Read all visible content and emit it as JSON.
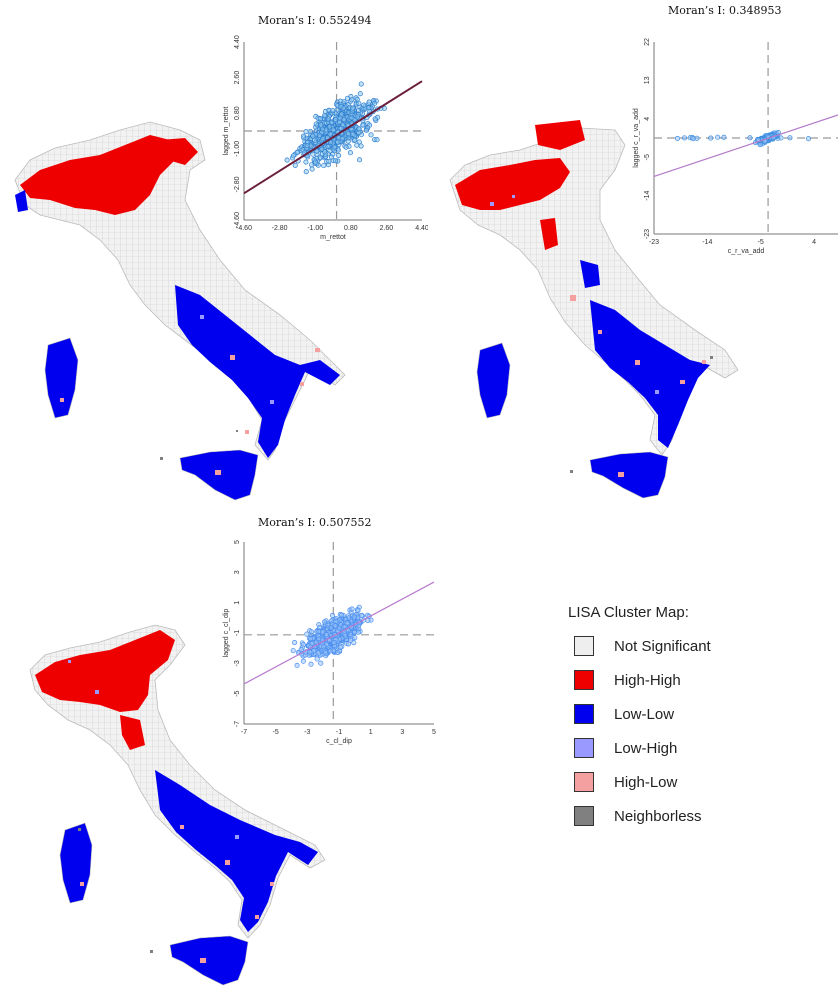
{
  "panels": [
    {
      "moran_label": "Moran’s I: 0.552494",
      "xlabel": "m_rettot",
      "ylabel": "lagged m_rettot",
      "xticks": [
        "-4.60",
        "-2.80",
        "-1.00",
        "0.80",
        "2.60",
        "4.40"
      ],
      "yticks": [
        "4.40",
        "2.60",
        "0.80",
        "-1.00",
        "-2.80",
        "-4.60"
      ],
      "point_color": "#2f7fd0",
      "line_color": "#6a1e3c"
    },
    {
      "moran_label": "Moran’s I: 0.348953",
      "xlabel": "c_r_va_add",
      "ylabel": "lagged c_r_va_add",
      "xticks": [
        "-23",
        "-14",
        "-5",
        "4",
        "13"
      ],
      "yticks": [
        "22",
        "13",
        "4",
        "-5",
        "-14",
        "-23"
      ],
      "point_color": "#3c8ee0",
      "line_color": "#b27ac8"
    },
    {
      "moran_label": "Moran’s I: 0.507552",
      "xlabel": "c_cl_dip",
      "ylabel": "lagged c_cl_dip",
      "xticks": [
        "-7",
        "-5",
        "-3",
        "-1",
        "1",
        "3",
        "5"
      ],
      "yticks": [
        "5",
        "3",
        "1",
        "-1",
        "-3",
        "-5",
        "-7"
      ],
      "point_color": "#4a8ef0",
      "line_color": "#b87ad0"
    }
  ],
  "legend": {
    "title": "LISA Cluster Map:",
    "items": [
      {
        "label": "Not Significant",
        "color": "#eeeeee"
      },
      {
        "label": "High-High",
        "color": "#ee0000"
      },
      {
        "label": "Low-Low",
        "color": "#0000ee"
      },
      {
        "label": "Low-High",
        "color": "#9999ff"
      },
      {
        "label": "High-Low",
        "color": "#f4a0a0"
      },
      {
        "label": "Neighborless",
        "color": "#808080"
      }
    ]
  }
}
